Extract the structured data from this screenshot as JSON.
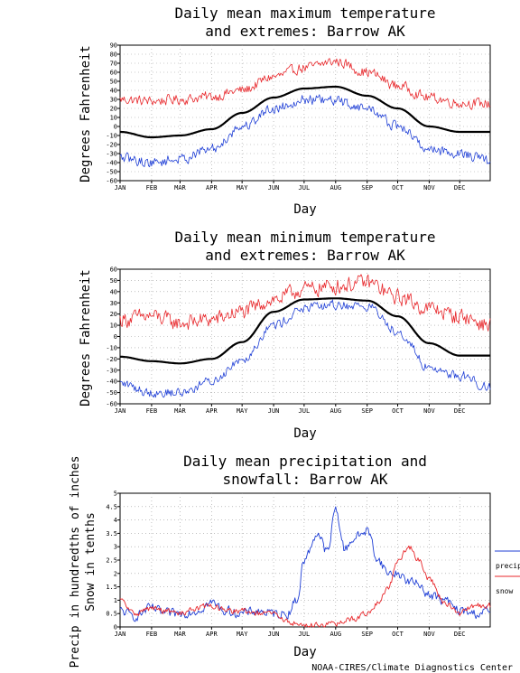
{
  "footer": "NOAA-CIRES/Climate Diagnostics Center",
  "colors": {
    "high": "#e8272b",
    "low": "#1f3fd6",
    "mean": "#000000",
    "precip": "#1f3fd6",
    "snow": "#e8272b",
    "grid": "#9a9a9a"
  },
  "chart_data": [
    {
      "type": "line",
      "title": [
        "Daily mean maximum temperature",
        "and extremes: Barrow AK"
      ],
      "xlabel": "Day",
      "ylabel": "Degrees Fahrenheit",
      "ylim": [
        -60,
        90
      ],
      "yticks": [
        -60,
        -50,
        -40,
        -30,
        -20,
        -10,
        0,
        10,
        20,
        30,
        40,
        50,
        60,
        70,
        80,
        90
      ],
      "months": [
        "JAN",
        "FEB",
        "MAR",
        "APR",
        "MAY",
        "JUN",
        "JUL",
        "AUG",
        "SEP",
        "OCT",
        "NOV",
        "DEC"
      ],
      "grid": true,
      "series": [
        {
          "role": "high",
          "x": [
            1,
            32,
            60,
            91,
            121,
            152,
            182,
            213,
            244,
            274,
            305,
            335,
            365
          ],
          "values": [
            30,
            28,
            30,
            33,
            40,
            55,
            65,
            72,
            60,
            45,
            32,
            26,
            25
          ],
          "noise": 8
        },
        {
          "role": "mean",
          "x": [
            1,
            32,
            60,
            91,
            121,
            152,
            182,
            213,
            244,
            274,
            305,
            335,
            365
          ],
          "values": [
            -6,
            -12,
            -10,
            -3,
            15,
            32,
            42,
            44,
            34,
            20,
            0,
            -6,
            -6
          ],
          "noise": 0
        },
        {
          "role": "low",
          "x": [
            1,
            32,
            60,
            91,
            121,
            152,
            182,
            213,
            244,
            274,
            305,
            335,
            365
          ],
          "values": [
            -35,
            -40,
            -36,
            -25,
            0,
            20,
            30,
            28,
            20,
            0,
            -25,
            -30,
            -38
          ],
          "noise": 8
        }
      ]
    },
    {
      "type": "line",
      "title": [
        "Daily mean minimum temperature",
        "and extremes: Barrow AK"
      ],
      "xlabel": "Day",
      "ylabel": "Degrees Fahrenheit",
      "ylim": [
        -60,
        60
      ],
      "yticks": [
        -60,
        -50,
        -40,
        -30,
        -20,
        -10,
        0,
        10,
        20,
        30,
        40,
        50,
        60
      ],
      "months": [
        "JAN",
        "FEB",
        "MAR",
        "APR",
        "MAY",
        "JUN",
        "JUL",
        "AUG",
        "SEP",
        "OCT",
        "NOV",
        "DEC"
      ],
      "grid": true,
      "series": [
        {
          "role": "high",
          "x": [
            1,
            32,
            60,
            91,
            121,
            152,
            182,
            213,
            244,
            274,
            305,
            335,
            365
          ],
          "values": [
            15,
            18,
            12,
            15,
            22,
            33,
            42,
            45,
            48,
            35,
            25,
            18,
            10
          ],
          "noise": 10
        },
        {
          "role": "mean",
          "x": [
            1,
            32,
            60,
            91,
            121,
            152,
            182,
            213,
            244,
            274,
            305,
            335,
            365
          ],
          "values": [
            -18,
            -22,
            -24,
            -20,
            -5,
            22,
            33,
            34,
            32,
            18,
            -6,
            -17,
            -17
          ],
          "noise": 0
        },
        {
          "role": "low",
          "x": [
            1,
            32,
            60,
            91,
            121,
            152,
            182,
            213,
            244,
            274,
            305,
            335,
            365
          ],
          "values": [
            -42,
            -50,
            -50,
            -40,
            -20,
            10,
            25,
            28,
            27,
            5,
            -28,
            -35,
            -45
          ],
          "noise": 6
        }
      ]
    },
    {
      "type": "line",
      "title": [
        "Daily mean precipitation and",
        "snowfall: Barrow AK"
      ],
      "xlabel": "Day",
      "ylabel": [
        "Precip in hundredths of inches",
        "Snow in tenths"
      ],
      "ylim": [
        0,
        5
      ],
      "yticks": [
        0,
        0.5,
        1,
        1.5,
        2,
        2.5,
        3,
        3.5,
        4,
        4.5,
        5
      ],
      "ytick_labels": [
        "0",
        "0.5",
        "1",
        "1.5",
        "2",
        "2.5",
        "3",
        "3.5",
        "4",
        "4.5",
        "5"
      ],
      "months": [
        "JAN",
        "FEB",
        "MAR",
        "APR",
        "MAY",
        "JUN",
        "JUL",
        "AUG",
        "SEP",
        "OCT",
        "NOV",
        "DEC"
      ],
      "grid": true,
      "legend": {
        "placement": "right",
        "entries": [
          "precip",
          "snow"
        ]
      },
      "series": [
        {
          "name": "precip",
          "role": "precip",
          "x": [
            1,
            15,
            32,
            45,
            60,
            75,
            91,
            105,
            121,
            135,
            152,
            165,
            175,
            182,
            195,
            205,
            213,
            222,
            230,
            244,
            255,
            265,
            274,
            285,
            295,
            305,
            320,
            335,
            350,
            365
          ],
          "values": [
            0.6,
            0.4,
            0.7,
            0.5,
            0.5,
            0.6,
            0.9,
            0.6,
            0.5,
            0.6,
            0.5,
            0.5,
            1.0,
            2.5,
            3.5,
            2.8,
            4.4,
            2.9,
            3.3,
            3.6,
            2.5,
            2.0,
            2.0,
            1.7,
            1.6,
            1.2,
            1.0,
            0.6,
            0.5,
            0.6
          ],
          "noise": 0.25
        },
        {
          "name": "snow",
          "role": "snow",
          "x": [
            1,
            15,
            32,
            45,
            60,
            75,
            91,
            105,
            121,
            135,
            152,
            165,
            182,
            200,
            213,
            230,
            244,
            255,
            265,
            274,
            285,
            295,
            305,
            320,
            335,
            350,
            365
          ],
          "values": [
            1.0,
            0.5,
            0.7,
            0.6,
            0.5,
            0.7,
            0.8,
            0.6,
            0.6,
            0.5,
            0.5,
            0.2,
            0.05,
            0.1,
            0.1,
            0.3,
            0.5,
            0.9,
            1.5,
            2.4,
            3.0,
            2.5,
            1.8,
            0.9,
            0.5,
            0.8,
            0.8
          ],
          "noise": 0.15
        }
      ]
    }
  ]
}
